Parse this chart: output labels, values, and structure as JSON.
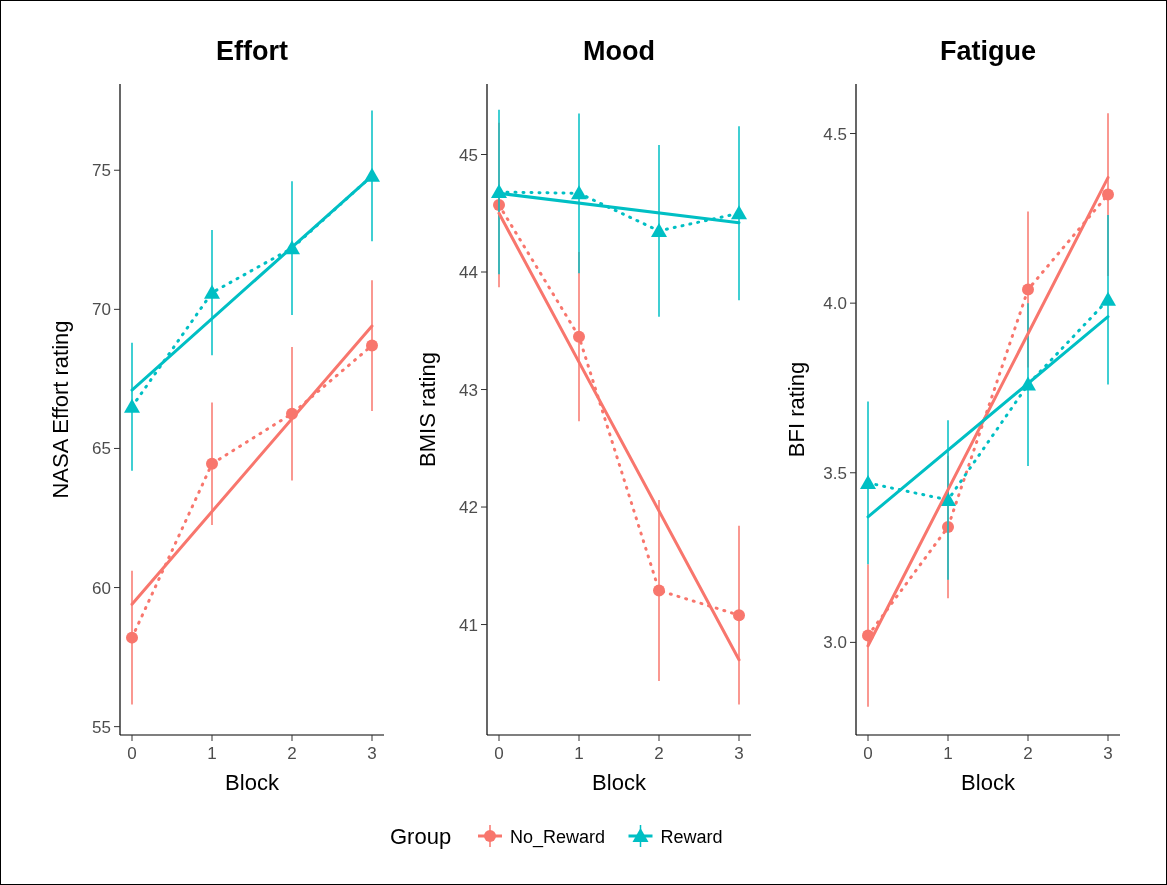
{
  "chart_data": [
    {
      "type": "line",
      "title": "Effort",
      "xlabel": "Block",
      "ylabel": "NASA Effort rating",
      "xlim": [
        -0.15,
        3.15
      ],
      "xticks": [
        0,
        1,
        2,
        3
      ],
      "ylim": [
        54.7,
        78.1
      ],
      "yticks": [
        55,
        60,
        65,
        70,
        75
      ],
      "grid": false,
      "series": [
        {
          "color": "#f8766d",
          "x": [
            0,
            1,
            2,
            3
          ],
          "values": [
            58.2,
            64.45,
            66.25,
            68.7
          ],
          "errors": [
            2.4,
            2.2,
            2.4,
            2.35
          ],
          "marker": "circle",
          "line_style": "dotted"
        },
        {
          "color": "#00bfc4",
          "x": [
            0,
            1,
            2,
            3
          ],
          "values": [
            66.5,
            70.6,
            72.2,
            74.8
          ],
          "errors": [
            2.3,
            2.25,
            2.4,
            2.35
          ],
          "marker": "triangle",
          "line_style": "dotted"
        },
        {
          "color": "#f8766d",
          "x": [
            0,
            3
          ],
          "values": [
            59.4,
            69.4
          ],
          "line_style": "solid"
        },
        {
          "color": "#00bfc4",
          "x": [
            0,
            3
          ],
          "values": [
            67.1,
            74.8
          ],
          "line_style": "solid"
        }
      ]
    },
    {
      "type": "line",
      "title": "Mood",
      "xlabel": "Block",
      "ylabel": "BMIS rating",
      "xlim": [
        -0.15,
        3.15
      ],
      "xticks": [
        0,
        1,
        2,
        3
      ],
      "ylim": [
        40.06,
        45.6
      ],
      "yticks": [
        41,
        42,
        43,
        44,
        45
      ],
      "grid": false,
      "legend": "bottom",
      "legend_title": "Group",
      "series": [
        {
          "name": "No_Reward",
          "color": "#f8766d",
          "x": [
            0,
            1,
            2,
            3
          ],
          "values": [
            44.57,
            43.45,
            41.29,
            41.08
          ],
          "errors": [
            0.7,
            0.72,
            0.77,
            0.76
          ],
          "marker": "circle",
          "line_style": "dotted"
        },
        {
          "name": "Reward",
          "color": "#00bfc4",
          "x": [
            0,
            1,
            2,
            3
          ],
          "values": [
            44.68,
            44.67,
            44.35,
            44.5
          ],
          "errors": [
            0.7,
            0.68,
            0.73,
            0.74
          ],
          "marker": "triangle",
          "line_style": "dotted"
        },
        {
          "color": "#f8766d",
          "x": [
            0,
            3
          ],
          "values": [
            44.5,
            40.7
          ],
          "line_style": "solid"
        },
        {
          "color": "#00bfc4",
          "x": [
            0,
            3
          ],
          "values": [
            44.67,
            44.42
          ],
          "line_style": "solid"
        }
      ]
    },
    {
      "type": "line",
      "title": "Fatigue",
      "xlabel": "Block",
      "ylabel": "BFI rating",
      "xlim": [
        -0.15,
        3.15
      ],
      "xticks": [
        0,
        1,
        2,
        3
      ],
      "ylim": [
        2.727,
        4.646
      ],
      "yticks": [
        {
          "value": 3,
          "label": "3.0"
        },
        3.5,
        {
          "value": 4,
          "label": "4.0"
        },
        4.5
      ],
      "grid": false,
      "series": [
        {
          "color": "#f8766d",
          "x": [
            0,
            1,
            2,
            3
          ],
          "values": [
            3.02,
            3.34,
            4.04,
            4.32
          ],
          "errors": [
            0.21,
            0.21,
            0.23,
            0.24
          ],
          "marker": "circle",
          "line_style": "dotted"
        },
        {
          "color": "#00bfc4",
          "x": [
            0,
            1,
            2,
            3
          ],
          "values": [
            3.47,
            3.42,
            3.76,
            4.01
          ],
          "errors": [
            0.24,
            0.235,
            0.24,
            0.25
          ],
          "marker": "triangle",
          "line_style": "dotted"
        },
        {
          "color": "#f8766d",
          "x": [
            0,
            3
          ],
          "values": [
            2.99,
            4.37
          ],
          "line_style": "solid"
        },
        {
          "color": "#00bfc4",
          "x": [
            0,
            3
          ],
          "values": [
            3.37,
            3.96
          ],
          "line_style": "solid"
        }
      ]
    }
  ]
}
